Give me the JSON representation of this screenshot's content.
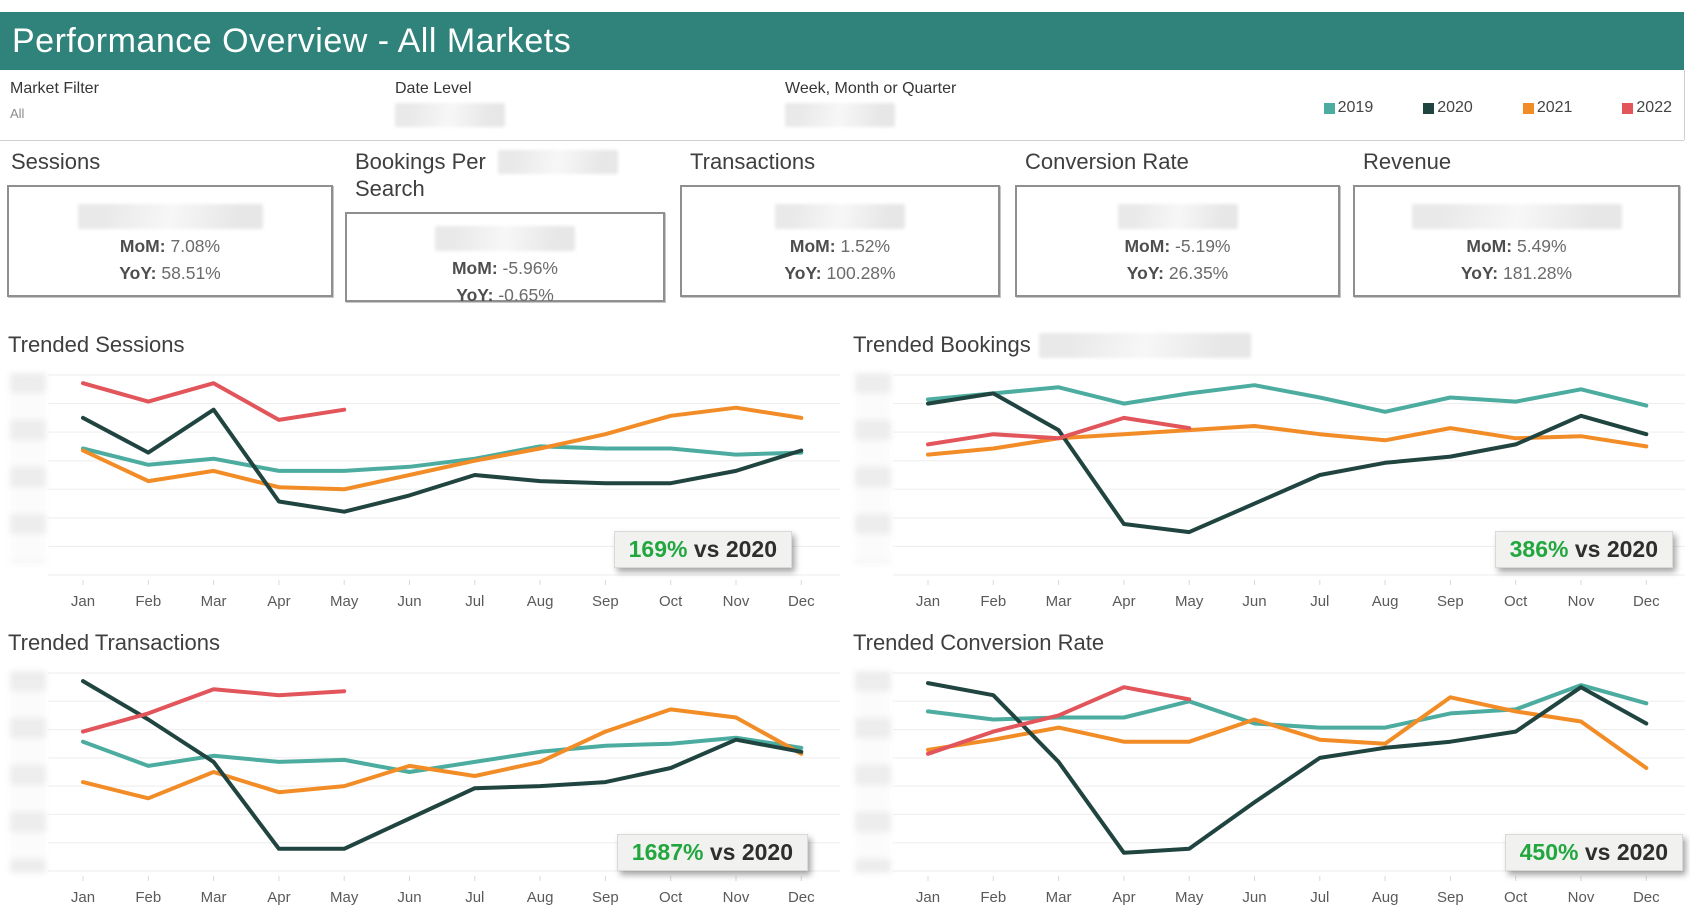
{
  "header": {
    "title": "Performance Overview - All Markets",
    "bg_color": "#2F837B"
  },
  "filter_bar": {
    "market_filter": {
      "label": "Market Filter",
      "value": "All"
    },
    "date_level": {
      "label": "Date Level",
      "value_redacted": true
    },
    "granularity": {
      "label": "Week, Month or Quarter",
      "value_redacted": true
    },
    "legend": [
      {
        "label": "2019",
        "color": "#4CAC9F"
      },
      {
        "label": "2020",
        "color": "#20443F"
      },
      {
        "label": "2021",
        "color": "#F28C27"
      },
      {
        "label": "2022",
        "color": "#E1555B"
      }
    ]
  },
  "kpis": [
    {
      "title": "Sessions",
      "value_redacted": true,
      "mom_label": "MoM:",
      "mom_value": "7.08%",
      "yoy_label": "YoY:",
      "yoy_value": "58.51%"
    },
    {
      "title_line1": "Bookings Per",
      "title_line2": "Search",
      "title_redacted": true,
      "value_redacted": true,
      "mom_label": "MoM:",
      "mom_value": "-5.96%",
      "yoy_label": "YoY:",
      "yoy_value": "-0.65%"
    },
    {
      "title": "Transactions",
      "value_redacted": true,
      "mom_label": "MoM:",
      "mom_value": "1.52%",
      "yoy_label": "YoY:",
      "yoy_value": "100.28%"
    },
    {
      "title": "Conversion Rate",
      "value_redacted": true,
      "mom_label": "MoM:",
      "mom_value": "-5.19%",
      "yoy_label": "YoY:",
      "yoy_value": "26.35%"
    },
    {
      "title": "Revenue",
      "value_redacted": true,
      "mom_label": "MoM:",
      "mom_value": "5.49%",
      "yoy_label": "YoY:",
      "yoy_value": "181.28%"
    }
  ],
  "chart_data": [
    {
      "type": "line",
      "title": "Trended Sessions",
      "title_redacted": false,
      "x_labels": [
        "Jan",
        "Feb",
        "Mar",
        "Apr",
        "May",
        "Jun",
        "Jul",
        "Aug",
        "Sep",
        "Oct",
        "Nov",
        "Dec"
      ],
      "y_axis": {
        "redacted": true,
        "scale": "relative 0-100 (tick labels blurred in source)"
      },
      "ylim": [
        0,
        100
      ],
      "grid": true,
      "series": [
        {
          "name": "2019",
          "color": "#4CAC9F",
          "values": [
            63,
            55,
            58,
            52,
            52,
            54,
            58,
            64,
            63,
            63,
            60,
            61
          ]
        },
        {
          "name": "2020",
          "color": "#20443F",
          "values": [
            78,
            61,
            82,
            37,
            32,
            40,
            50,
            47,
            46,
            46,
            52,
            62
          ]
        },
        {
          "name": "2021",
          "color": "#F28C27",
          "values": [
            62,
            47,
            52,
            44,
            43,
            50,
            57,
            63,
            70,
            79,
            83,
            78
          ]
        },
        {
          "name": "2022",
          "color": "#E1555B",
          "values": [
            95,
            86,
            95,
            77,
            82,
            null,
            null,
            null,
            null,
            null,
            null,
            null
          ]
        }
      ],
      "badge": {
        "value": "169%",
        "suffix": "vs 2020"
      }
    },
    {
      "type": "line",
      "title": "Trended Bookings",
      "title_redacted": true,
      "x_labels": [
        "Jan",
        "Feb",
        "Mar",
        "Apr",
        "May",
        "Jun",
        "Jul",
        "Aug",
        "Sep",
        "Oct",
        "Nov",
        "Dec"
      ],
      "y_axis": {
        "redacted": true,
        "scale": "relative 0-100 (tick labels blurred in source)"
      },
      "ylim": [
        0,
        100
      ],
      "grid": true,
      "series": [
        {
          "name": "2019",
          "color": "#4CAC9F",
          "values": [
            87,
            90,
            93,
            85,
            90,
            94,
            88,
            81,
            88,
            86,
            92,
            84
          ]
        },
        {
          "name": "2020",
          "color": "#20443F",
          "values": [
            85,
            90,
            72,
            26,
            22,
            36,
            50,
            56,
            59,
            65,
            79,
            70
          ]
        },
        {
          "name": "2021",
          "color": "#F28C27",
          "values": [
            60,
            63,
            68,
            70,
            72,
            74,
            70,
            67,
            73,
            68,
            69,
            64
          ]
        },
        {
          "name": "2022",
          "color": "#E1555B",
          "values": [
            65,
            70,
            68,
            78,
            73,
            null,
            null,
            null,
            null,
            null,
            null,
            null
          ]
        }
      ],
      "badge": {
        "value": "386%",
        "suffix": "vs 2020"
      }
    },
    {
      "type": "line",
      "title": "Trended Transactions",
      "title_redacted": false,
      "x_labels": [
        "Jan",
        "Feb",
        "Mar",
        "Apr",
        "May",
        "Jun",
        "Jul",
        "Aug",
        "Sep",
        "Oct",
        "Nov",
        "Dec"
      ],
      "y_axis": {
        "redacted": true,
        "scale": "relative 0-100 (tick labels blurred in source)"
      },
      "ylim": [
        0,
        100
      ],
      "grid": true,
      "series": [
        {
          "name": "2019",
          "color": "#4CAC9F",
          "values": [
            65,
            53,
            58,
            55,
            56,
            50,
            55,
            60,
            63,
            64,
            67,
            62
          ]
        },
        {
          "name": "2020",
          "color": "#20443F",
          "values": [
            95,
            76,
            55,
            12,
            12,
            27,
            42,
            43,
            45,
            52,
            66,
            60
          ]
        },
        {
          "name": "2021",
          "color": "#F28C27",
          "values": [
            45,
            37,
            50,
            40,
            43,
            53,
            48,
            55,
            70,
            81,
            77,
            59
          ]
        },
        {
          "name": "2022",
          "color": "#E1555B",
          "values": [
            70,
            79,
            91,
            88,
            90,
            null,
            null,
            null,
            null,
            null,
            null,
            null
          ]
        }
      ],
      "badge": {
        "value": "1687%",
        "suffix": "vs 2020"
      }
    },
    {
      "type": "line",
      "title": "Trended Conversion Rate",
      "title_redacted": false,
      "x_labels": [
        "Jan",
        "Feb",
        "Mar",
        "Apr",
        "May",
        "Jun",
        "Jul",
        "Aug",
        "Sep",
        "Oct",
        "Nov",
        "Dec"
      ],
      "y_axis": {
        "redacted": true,
        "scale": "relative 0-100 (tick labels blurred in source)"
      },
      "ylim": [
        0,
        100
      ],
      "grid": true,
      "series": [
        {
          "name": "2019",
          "color": "#4CAC9F",
          "values": [
            80,
            76,
            77,
            77,
            85,
            74,
            72,
            72,
            79,
            81,
            93,
            84
          ]
        },
        {
          "name": "2020",
          "color": "#20443F",
          "values": [
            94,
            88,
            55,
            10,
            12,
            35,
            57,
            62,
            65,
            70,
            92,
            74
          ]
        },
        {
          "name": "2021",
          "color": "#F28C27",
          "values": [
            61,
            66,
            72,
            65,
            65,
            76,
            66,
            64,
            87,
            80,
            75,
            52
          ]
        },
        {
          "name": "2022",
          "color": "#E1555B",
          "values": [
            59,
            70,
            78,
            92,
            86,
            null,
            null,
            null,
            null,
            null,
            null,
            null
          ]
        }
      ],
      "badge": {
        "value": "450%",
        "suffix": "vs 2020"
      }
    }
  ]
}
